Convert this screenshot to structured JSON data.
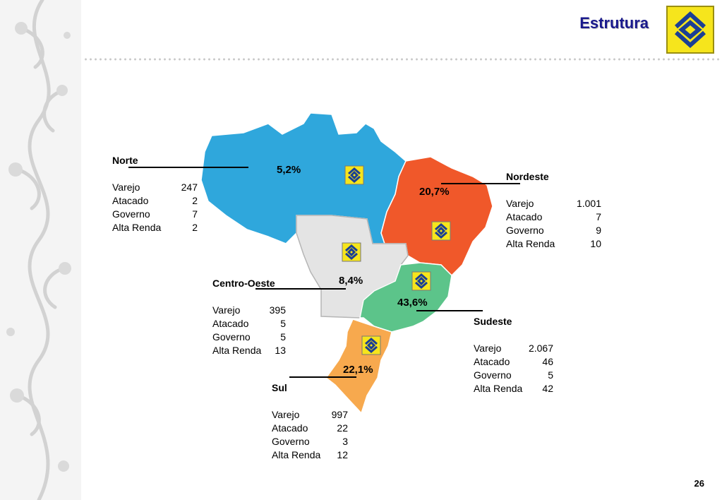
{
  "header": {
    "title": "Estrutura",
    "logo_icon": "banco-do-brasil-logo-icon"
  },
  "map": {
    "marker_icon": "banco-do-brasil-marker-icon",
    "regions": [
      {
        "name": "Norte",
        "share": "5,2%",
        "color": "#2fa7dc",
        "items": [
          {
            "label": "Varejo",
            "value": "247"
          },
          {
            "label": "Atacado",
            "value": "2"
          },
          {
            "label": "Governo",
            "value": "7"
          },
          {
            "label": "Alta Renda",
            "value": "2"
          }
        ]
      },
      {
        "name": "Nordeste",
        "share": "20,7%",
        "color": "#f0582a",
        "items": [
          {
            "label": "Varejo",
            "value": "1.001"
          },
          {
            "label": "Atacado",
            "value": "7"
          },
          {
            "label": "Governo",
            "value": "9"
          },
          {
            "label": "Alta Renda",
            "value": "10"
          }
        ]
      },
      {
        "name": "Centro-Oeste",
        "share": "8,4%",
        "color": "#e4e4e4",
        "items": [
          {
            "label": "Varejo",
            "value": "395"
          },
          {
            "label": "Atacado",
            "value": "5"
          },
          {
            "label": "Governo",
            "value": "5"
          },
          {
            "label": "Alta Renda",
            "value": "13"
          }
        ]
      },
      {
        "name": "Sudeste",
        "share": "43,6%",
        "color": "#5cc48a",
        "items": [
          {
            "label": "Varejo",
            "value": "2.067"
          },
          {
            "label": "Atacado",
            "value": "46"
          },
          {
            "label": "Governo",
            "value": "5"
          },
          {
            "label": "Alta Renda",
            "value": "42"
          }
        ]
      },
      {
        "name": "Sul",
        "share": "22,1%",
        "color": "#f7a94e",
        "items": [
          {
            "label": "Varejo",
            "value": "997"
          },
          {
            "label": "Atacado",
            "value": "22"
          },
          {
            "label": "Governo",
            "value": "3"
          },
          {
            "label": "Alta Renda",
            "value": "12"
          }
        ]
      }
    ]
  },
  "footer": {
    "page_number": "26"
  }
}
